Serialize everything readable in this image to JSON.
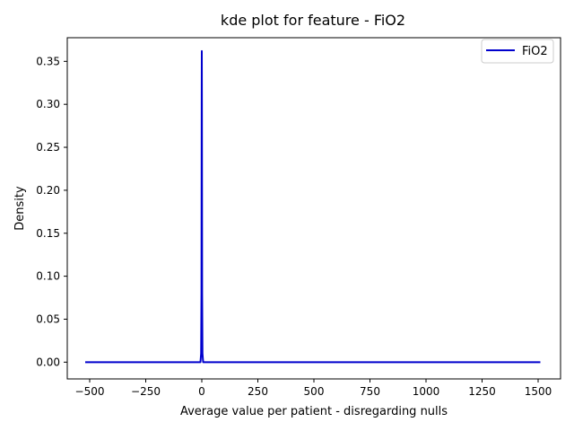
{
  "chart_data": {
    "type": "line",
    "title": "kde plot for feature -  FiO2",
    "xlabel": "Average value per patient - disregarding nulls",
    "ylabel": "Density",
    "xlim": [
      -600,
      1600
    ],
    "ylim": [
      -0.0195,
      0.3775
    ],
    "xticks": [
      -500,
      -250,
      0,
      250,
      500,
      750,
      1000,
      1250,
      1500
    ],
    "xtick_labels": [
      "−500",
      "−250",
      "0",
      "250",
      "500",
      "750",
      "1000",
      "1250",
      "1500"
    ],
    "yticks": [
      0.0,
      0.05,
      0.1,
      0.15,
      0.2,
      0.25,
      0.3,
      0.35
    ],
    "ytick_labels": [
      "0.00",
      "0.05",
      "0.10",
      "0.15",
      "0.20",
      "0.25",
      "0.30",
      "0.35"
    ],
    "grid": false,
    "legend_position": "top-right",
    "series": [
      {
        "name": "FiO2",
        "color": "#0000cd",
        "x": [
          -520,
          -20,
          -6,
          -3,
          -1.5,
          -0.5,
          0,
          0.5,
          1.5,
          3,
          6,
          20,
          1510
        ],
        "y": [
          0,
          0,
          0,
          0.01,
          0.08,
          0.3,
          0.362,
          0.3,
          0.08,
          0.01,
          0,
          0,
          0
        ]
      }
    ]
  }
}
